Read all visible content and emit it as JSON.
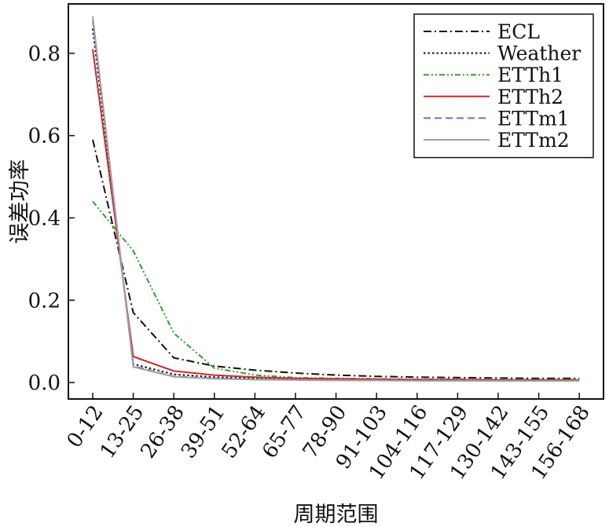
{
  "chart_data": {
    "type": "line",
    "title": "",
    "xlabel": "周期范围",
    "ylabel": "误差功率",
    "categories": [
      "0-12",
      "13-25",
      "26-38",
      "39-51",
      "52-64",
      "65-77",
      "78-90",
      "91-103",
      "104-116",
      "117-129",
      "130-142",
      "143-155",
      "156-168"
    ],
    "ylim": [
      -0.04,
      0.92
    ],
    "yticks": [
      0.0,
      0.2,
      0.4,
      0.6,
      0.8
    ],
    "ytick_labels": [
      "0.0",
      "0.2",
      "0.4",
      "0.6",
      "0.8"
    ],
    "grid": false,
    "legend_position": "top-right",
    "series": [
      {
        "name": "ECL",
        "color": "#111111",
        "dash": "dashdot",
        "values": [
          0.59,
          0.17,
          0.06,
          0.04,
          0.03,
          0.023,
          0.018,
          0.015,
          0.013,
          0.012,
          0.011,
          0.01,
          0.01
        ]
      },
      {
        "name": "Weather",
        "color": "#111111",
        "dash": "dotted",
        "values": [
          0.86,
          0.045,
          0.02,
          0.013,
          0.01,
          0.008,
          0.007,
          0.006,
          0.006,
          0.006,
          0.005,
          0.005,
          0.005
        ]
      },
      {
        "name": "ETTh1",
        "color": "#2ca02c",
        "dash": "dashdotdot",
        "values": [
          0.44,
          0.32,
          0.12,
          0.035,
          0.018,
          0.012,
          0.01,
          0.009,
          0.008,
          0.008,
          0.007,
          0.007,
          0.007
        ]
      },
      {
        "name": "ETTh2",
        "color": "#cc2a2a",
        "dash": "solid",
        "values": [
          0.81,
          0.063,
          0.028,
          0.018,
          0.013,
          0.01,
          0.009,
          0.008,
          0.007,
          0.007,
          0.006,
          0.006,
          0.006
        ]
      },
      {
        "name": "ETTm1",
        "color": "#7b68c8",
        "dash": "dashed",
        "values": [
          0.88,
          0.04,
          0.015,
          0.01,
          0.008,
          0.007,
          0.006,
          0.005,
          0.005,
          0.005,
          0.004,
          0.004,
          0.004
        ]
      },
      {
        "name": "ETTm2",
        "color": "#a0a0a0",
        "dash": "solid",
        "values": [
          0.89,
          0.038,
          0.014,
          0.009,
          0.007,
          0.006,
          0.005,
          0.005,
          0.004,
          0.004,
          0.004,
          0.004,
          0.004
        ]
      }
    ]
  }
}
